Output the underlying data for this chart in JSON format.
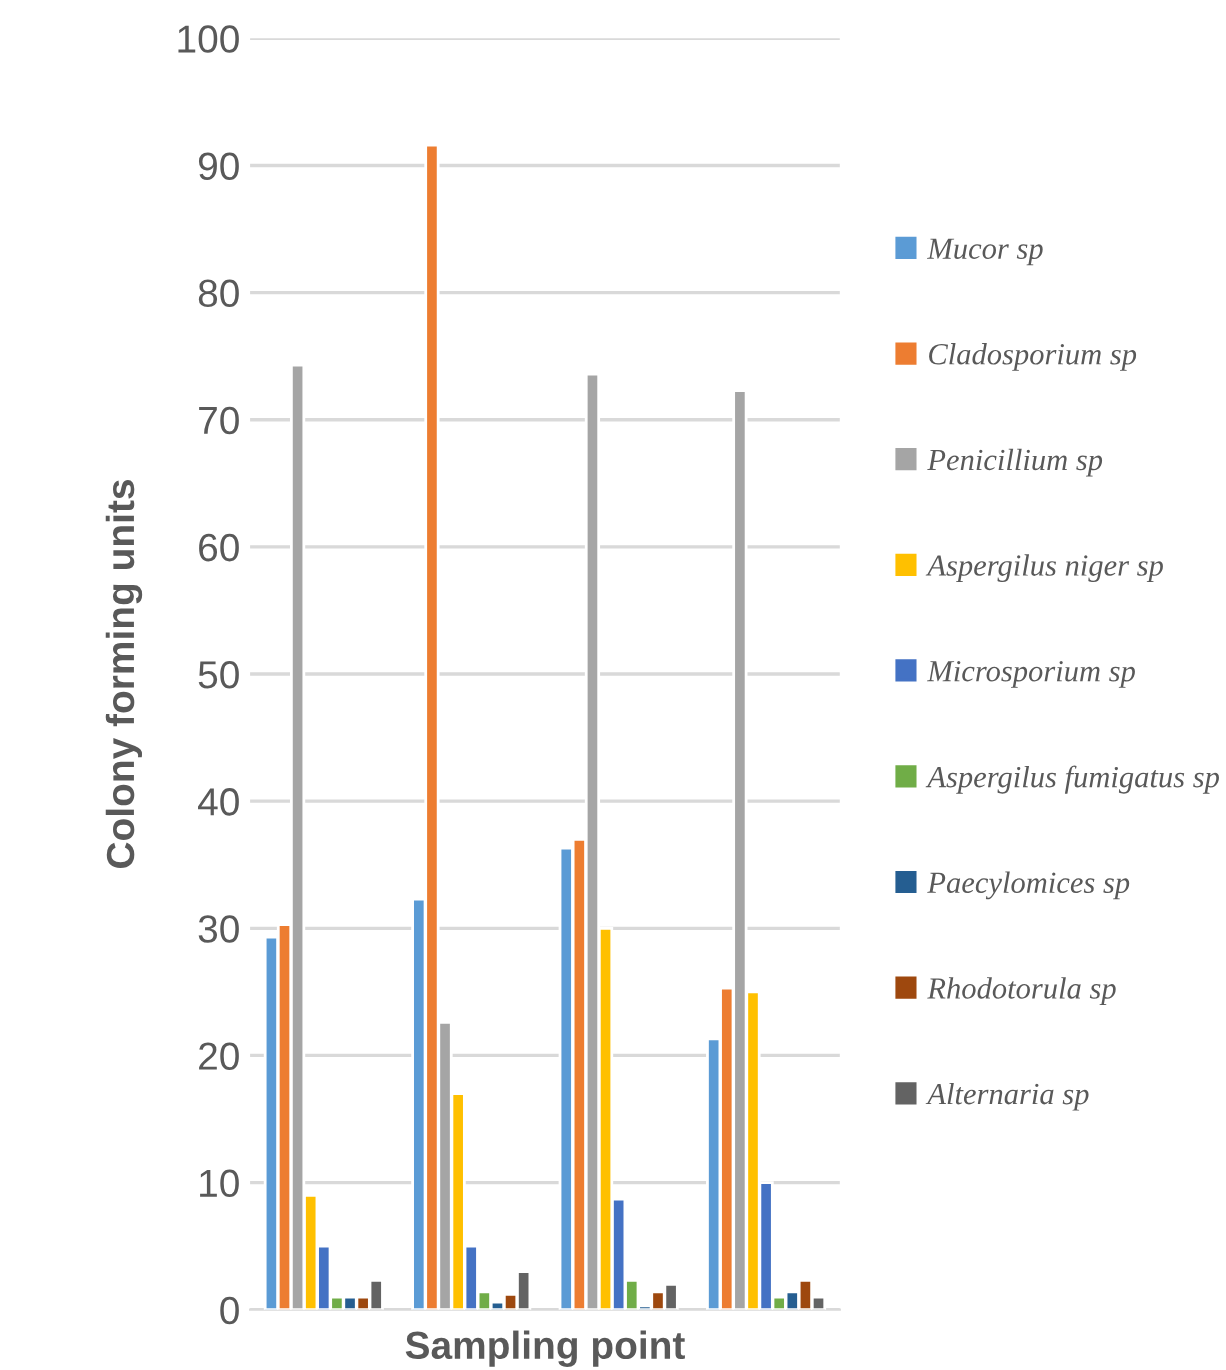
{
  "chart_data": {
    "type": "bar",
    "xlabel": "Sampling point",
    "ylabel": "Colony forming units",
    "categories": [
      null,
      null,
      null,
      null
    ],
    "series": [
      {
        "name": "Mucor sp",
        "color": "#5b9bd5",
        "values": [
          29.3,
          32.3,
          36.3,
          21.3
        ]
      },
      {
        "name": "Cladosporium sp",
        "color": "#ed7d31",
        "values": [
          30.3,
          91.6,
          37,
          25.3
        ]
      },
      {
        "name": "Penicillium sp",
        "color": "#a5a5a5",
        "values": [
          74.3,
          22.6,
          73.6,
          72.3
        ]
      },
      {
        "name": "Aspergilus niger sp",
        "color": "#ffc000",
        "values": [
          9,
          17,
          30,
          25
        ]
      },
      {
        "name": "Microsporium sp",
        "color": "#4472c4",
        "values": [
          5,
          5,
          8.7,
          10
        ]
      },
      {
        "name": "Aspergilus fumigatus sp",
        "color": "#70ad47",
        "values": [
          1,
          1.4,
          2.3,
          1
        ]
      },
      {
        "name": "Paecylomices sp",
        "color": "#255e91",
        "values": [
          1,
          0.6,
          0.3,
          1.4
        ]
      },
      {
        "name": "Rhodotorula sp",
        "color": "#9e480e",
        "values": [
          1,
          1.2,
          1.4,
          2.3
        ]
      },
      {
        "name": "Alternaria sp",
        "color": "#636363",
        "values": [
          2.3,
          3,
          2,
          1
        ]
      }
    ],
    "ylim": [
      0,
      100
    ],
    "yticks": [
      0,
      10,
      20,
      30,
      40,
      50,
      60,
      70,
      80,
      90,
      100
    ],
    "grid": "y",
    "legend": "right"
  }
}
